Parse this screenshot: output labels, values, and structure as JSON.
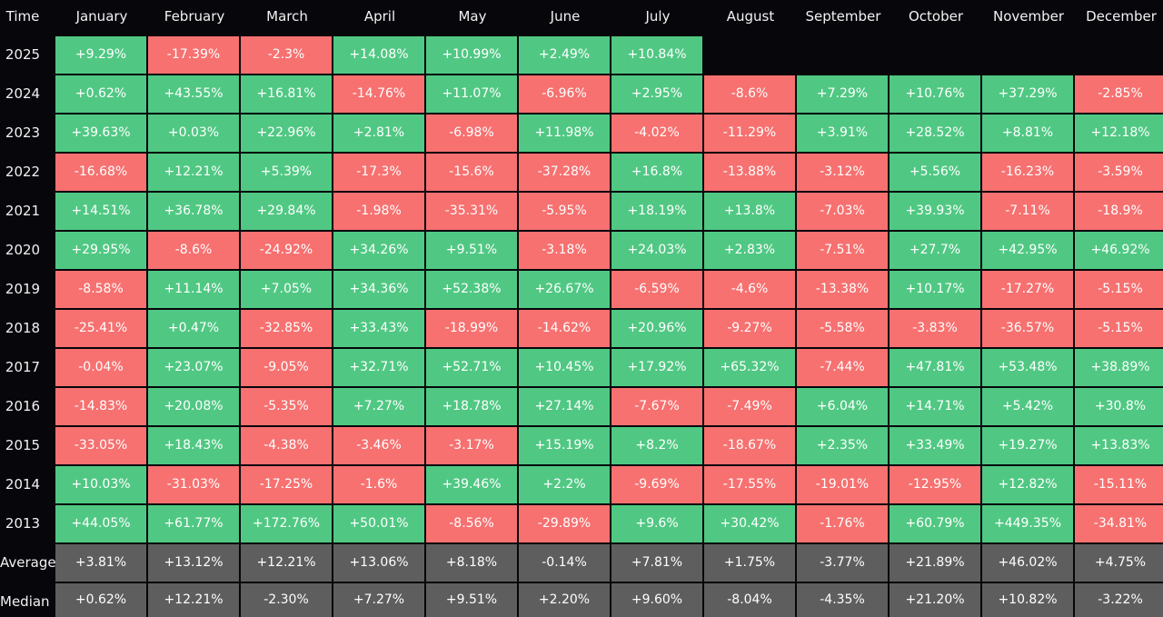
{
  "colors": {
    "background": "#06060b",
    "positive": "#50c883",
    "negative": "#f67170",
    "summary": "#5e5e5e",
    "text": "#ffffff"
  },
  "chart_data": {
    "type": "table",
    "corner_label": "Time",
    "columns": [
      "January",
      "February",
      "March",
      "April",
      "May",
      "June",
      "July",
      "August",
      "September",
      "October",
      "November",
      "December"
    ],
    "rows": [
      {
        "label": "2025",
        "values": [
          "+9.29%",
          "-17.39%",
          "-2.3%",
          "+14.08%",
          "+10.99%",
          "+2.49%",
          "+10.84%",
          null,
          null,
          null,
          null,
          null
        ]
      },
      {
        "label": "2024",
        "values": [
          "+0.62%",
          "+43.55%",
          "+16.81%",
          "-14.76%",
          "+11.07%",
          "-6.96%",
          "+2.95%",
          "-8.6%",
          "+7.29%",
          "+10.76%",
          "+37.29%",
          "-2.85%"
        ]
      },
      {
        "label": "2023",
        "values": [
          "+39.63%",
          "+0.03%",
          "+22.96%",
          "+2.81%",
          "-6.98%",
          "+11.98%",
          "-4.02%",
          "-11.29%",
          "+3.91%",
          "+28.52%",
          "+8.81%",
          "+12.18%"
        ]
      },
      {
        "label": "2022",
        "values": [
          "-16.68%",
          "+12.21%",
          "+5.39%",
          "-17.3%",
          "-15.6%",
          "-37.28%",
          "+16.8%",
          "-13.88%",
          "-3.12%",
          "+5.56%",
          "-16.23%",
          "-3.59%"
        ]
      },
      {
        "label": "2021",
        "values": [
          "+14.51%",
          "+36.78%",
          "+29.84%",
          "-1.98%",
          "-35.31%",
          "-5.95%",
          "+18.19%",
          "+13.8%",
          "-7.03%",
          "+39.93%",
          "-7.11%",
          "-18.9%"
        ]
      },
      {
        "label": "2020",
        "values": [
          "+29.95%",
          "-8.6%",
          "-24.92%",
          "+34.26%",
          "+9.51%",
          "-3.18%",
          "+24.03%",
          "+2.83%",
          "-7.51%",
          "+27.7%",
          "+42.95%",
          "+46.92%"
        ]
      },
      {
        "label": "2019",
        "values": [
          "-8.58%",
          "+11.14%",
          "+7.05%",
          "+34.36%",
          "+52.38%",
          "+26.67%",
          "-6.59%",
          "-4.6%",
          "-13.38%",
          "+10.17%",
          "-17.27%",
          "-5.15%"
        ]
      },
      {
        "label": "2018",
        "values": [
          "-25.41%",
          "+0.47%",
          "-32.85%",
          "+33.43%",
          "-18.99%",
          "-14.62%",
          "+20.96%",
          "-9.27%",
          "-5.58%",
          "-3.83%",
          "-36.57%",
          "-5.15%"
        ]
      },
      {
        "label": "2017",
        "values": [
          "-0.04%",
          "+23.07%",
          "-9.05%",
          "+32.71%",
          "+52.71%",
          "+10.45%",
          "+17.92%",
          "+65.32%",
          "-7.44%",
          "+47.81%",
          "+53.48%",
          "+38.89%"
        ]
      },
      {
        "label": "2016",
        "values": [
          "-14.83%",
          "+20.08%",
          "-5.35%",
          "+7.27%",
          "+18.78%",
          "+27.14%",
          "-7.67%",
          "-7.49%",
          "+6.04%",
          "+14.71%",
          "+5.42%",
          "+30.8%"
        ]
      },
      {
        "label": "2015",
        "values": [
          "-33.05%",
          "+18.43%",
          "-4.38%",
          "-3.46%",
          "-3.17%",
          "+15.19%",
          "+8.2%",
          "-18.67%",
          "+2.35%",
          "+33.49%",
          "+19.27%",
          "+13.83%"
        ]
      },
      {
        "label": "2014",
        "values": [
          "+10.03%",
          "-31.03%",
          "-17.25%",
          "-1.6%",
          "+39.46%",
          "+2.2%",
          "-9.69%",
          "-17.55%",
          "-19.01%",
          "-12.95%",
          "+12.82%",
          "-15.11%"
        ]
      },
      {
        "label": "2013",
        "values": [
          "+44.05%",
          "+61.77%",
          "+172.76%",
          "+50.01%",
          "-8.56%",
          "-29.89%",
          "+9.6%",
          "+30.42%",
          "-1.76%",
          "+60.79%",
          "+449.35%",
          "-34.81%"
        ]
      }
    ],
    "summary_rows": [
      {
        "label": "Average",
        "values": [
          "+3.81%",
          "+13.12%",
          "+12.21%",
          "+13.06%",
          "+8.18%",
          "-0.14%",
          "+7.81%",
          "+1.75%",
          "-3.77%",
          "+21.89%",
          "+46.02%",
          "+4.75%"
        ]
      },
      {
        "label": "Median",
        "values": [
          "+0.62%",
          "+12.21%",
          "-2.30%",
          "+7.27%",
          "+9.51%",
          "+2.20%",
          "+9.60%",
          "-8.04%",
          "-4.35%",
          "+21.20%",
          "+10.82%",
          "-3.22%"
        ]
      }
    ]
  }
}
